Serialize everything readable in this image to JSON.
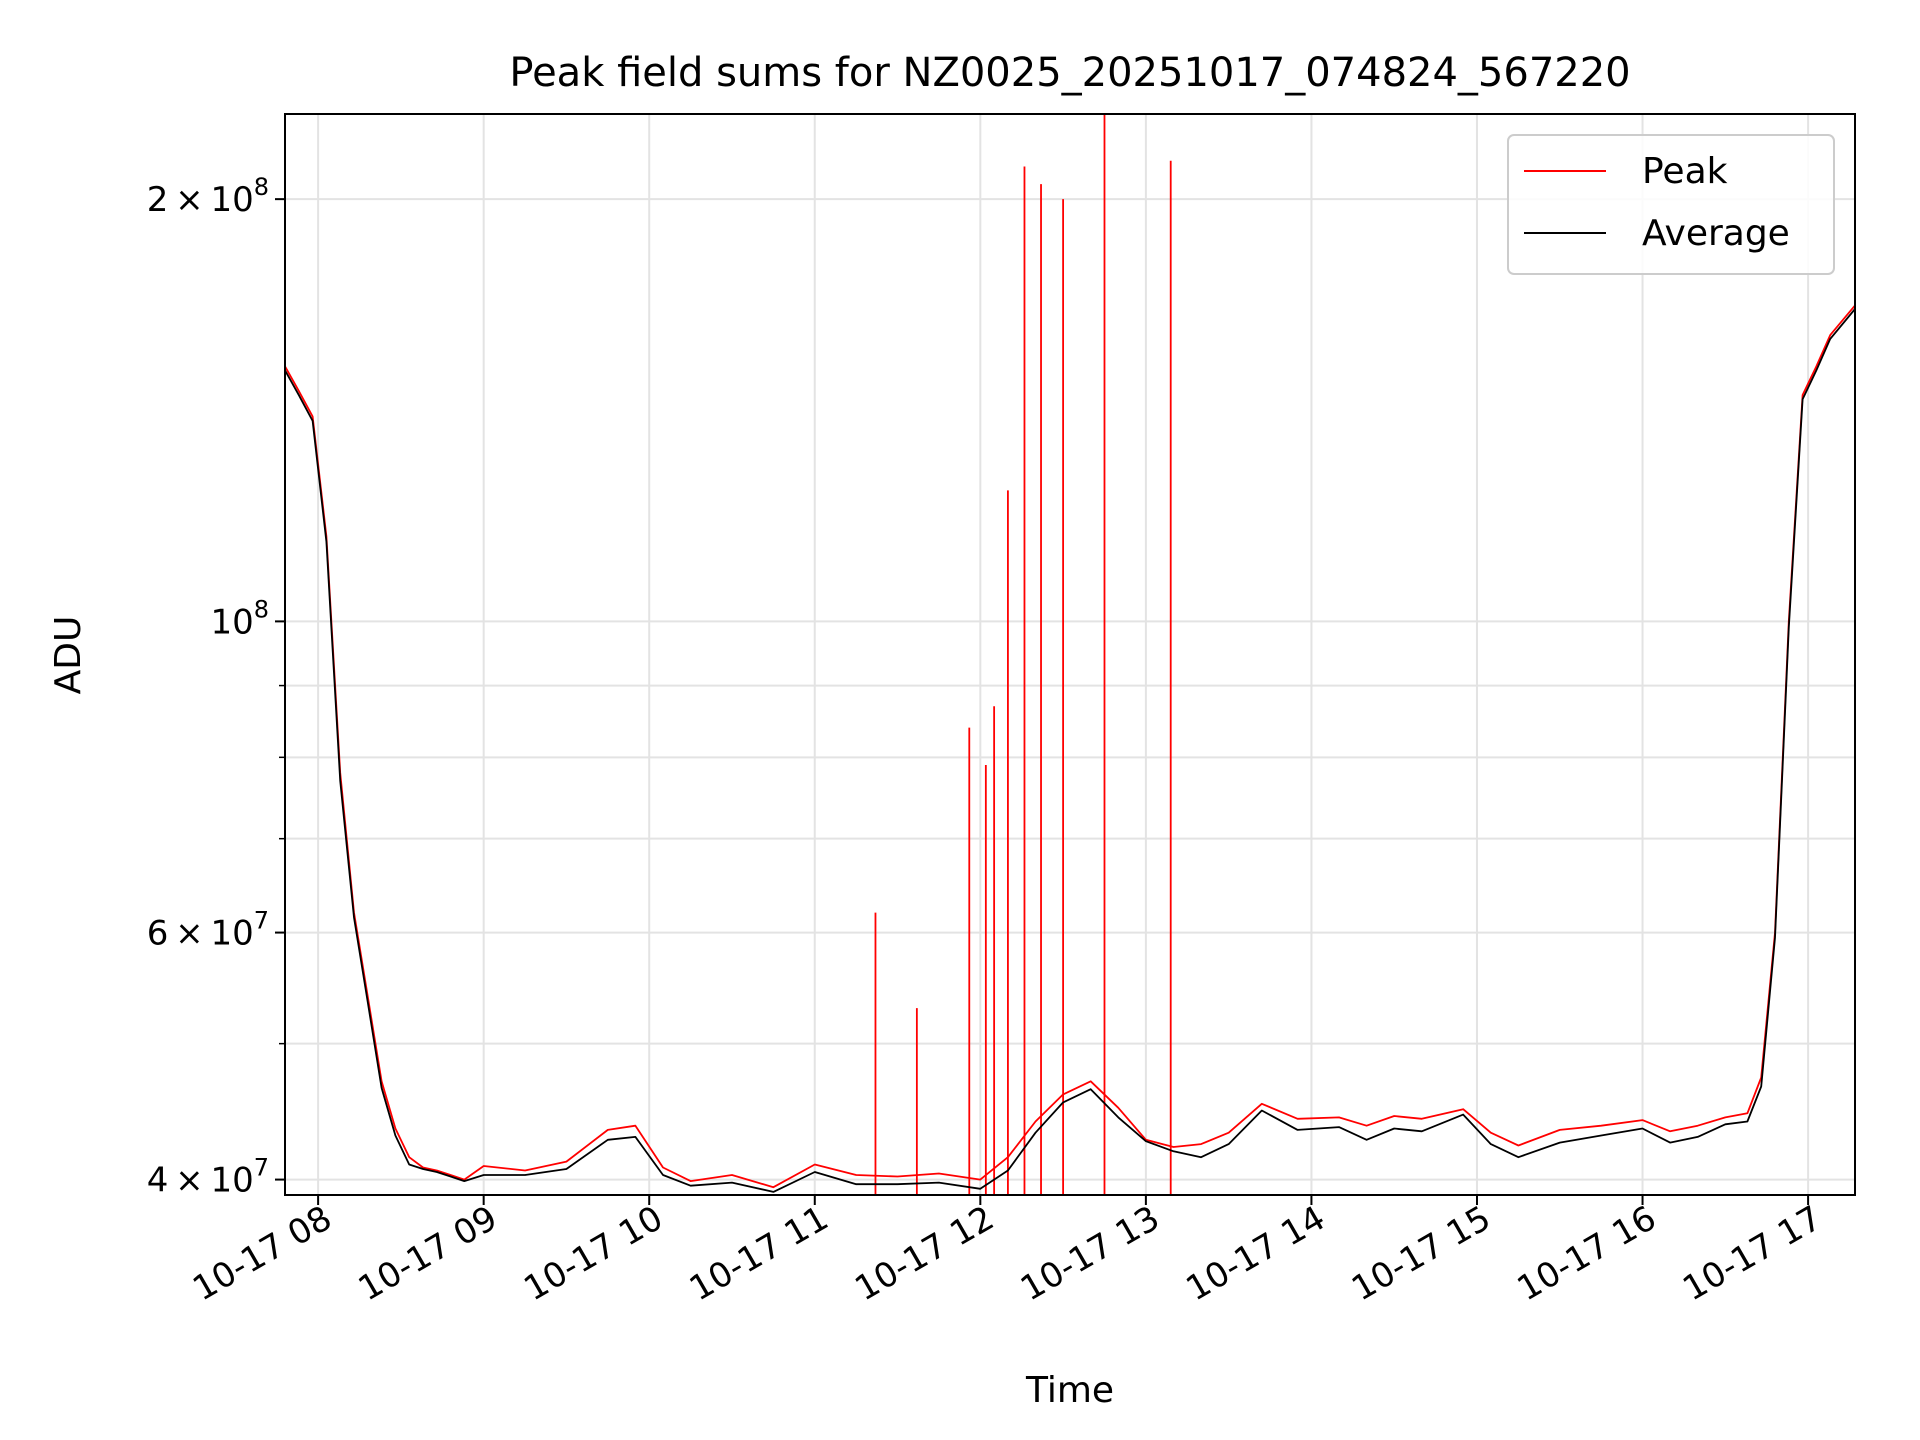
{
  "chart_data": {
    "type": "line",
    "title": "Peak field sums for NZ0025_20251017_074824_567220",
    "xlabel": "Time",
    "ylabel": "ADU",
    "y_scale": "log",
    "ylim": [
      39000000,
      230000000
    ],
    "xlim": [
      "2025-10-17 07:48",
      "2025-10-17 17:17"
    ],
    "grid": true,
    "legend_position": "top-right",
    "x_ticks": [
      {
        "t": "2025-10-17 08:00",
        "label": "10-17 08"
      },
      {
        "t": "2025-10-17 09:00",
        "label": "10-17 09"
      },
      {
        "t": "2025-10-17 10:00",
        "label": "10-17 10"
      },
      {
        "t": "2025-10-17 11:00",
        "label": "10-17 11"
      },
      {
        "t": "2025-10-17 12:00",
        "label": "10-17 12"
      },
      {
        "t": "2025-10-17 13:00",
        "label": "10-17 13"
      },
      {
        "t": "2025-10-17 14:00",
        "label": "10-17 14"
      },
      {
        "t": "2025-10-17 15:00",
        "label": "10-17 15"
      },
      {
        "t": "2025-10-17 16:00",
        "label": "10-17 16"
      },
      {
        "t": "2025-10-17 17:00",
        "label": "10-17 17"
      }
    ],
    "y_ticks": [
      {
        "value": 40000000,
        "mantissa": "4 × 10",
        "exp": "7"
      },
      {
        "value": 60000000,
        "mantissa": "6 × 10",
        "exp": "7"
      },
      {
        "value": 100000000,
        "mantissa": "10",
        "exp": "8"
      },
      {
        "value": 200000000,
        "mantissa": "2 × 10",
        "exp": "8"
      }
    ],
    "y_minor_ticks": [
      50000000,
      70000000,
      80000000,
      90000000
    ],
    "series": [
      {
        "name": "Peak",
        "color": "#ff0000",
        "x": [
          "2025-10-17 07:48",
          "2025-10-17 07:53",
          "2025-10-17 07:58",
          "2025-10-17 08:03",
          "2025-10-17 08:08",
          "2025-10-17 08:13",
          "2025-10-17 08:18",
          "2025-10-17 08:23",
          "2025-10-17 08:28",
          "2025-10-17 08:33",
          "2025-10-17 08:38",
          "2025-10-17 08:43",
          "2025-10-17 08:48",
          "2025-10-17 08:53",
          "2025-10-17 09:00",
          "2025-10-17 09:15",
          "2025-10-17 09:30",
          "2025-10-17 09:45",
          "2025-10-17 09:55",
          "2025-10-17 10:05",
          "2025-10-17 10:15",
          "2025-10-17 10:30",
          "2025-10-17 10:45",
          "2025-10-17 11:00",
          "2025-10-17 11:15",
          "2025-10-17 11:30",
          "2025-10-17 11:45",
          "2025-10-17 12:00",
          "2025-10-17 12:10",
          "2025-10-17 12:20",
          "2025-10-17 12:30",
          "2025-10-17 12:40",
          "2025-10-17 12:50",
          "2025-10-17 13:00",
          "2025-10-17 13:10",
          "2025-10-17 13:20",
          "2025-10-17 13:30",
          "2025-10-17 13:42",
          "2025-10-17 13:55",
          "2025-10-17 14:10",
          "2025-10-17 14:20",
          "2025-10-17 14:30",
          "2025-10-17 14:40",
          "2025-10-17 14:55",
          "2025-10-17 15:05",
          "2025-10-17 15:15",
          "2025-10-17 15:30",
          "2025-10-17 15:45",
          "2025-10-17 16:00",
          "2025-10-17 16:10",
          "2025-10-17 16:20",
          "2025-10-17 16:30",
          "2025-10-17 16:38",
          "2025-10-17 16:43",
          "2025-10-17 16:48",
          "2025-10-17 16:53",
          "2025-10-17 16:58",
          "2025-10-17 17:03",
          "2025-10-17 17:08",
          "2025-10-17 17:17"
        ],
        "y": [
          152000000,
          146000000,
          140000000,
          115000000,
          78000000,
          62000000,
          54000000,
          47000000,
          43500000,
          41500000,
          40800000,
          40600000,
          40300000,
          40000000,
          40900000,
          40600000,
          41200000,
          43400000,
          43700000,
          40800000,
          39900000,
          40300000,
          39500000,
          41000000,
          40300000,
          40200000,
          40400000,
          40000000,
          41500000,
          44000000,
          46000000,
          47000000,
          45000000,
          42700000,
          42200000,
          42400000,
          43200000,
          45300000,
          44200000,
          44300000,
          43700000,
          44400000,
          44200000,
          44900000,
          43200000,
          42300000,
          43400000,
          43700000,
          44100000,
          43300000,
          43700000,
          44300000,
          44600000,
          47300000,
          60000000,
          100000000,
          145000000,
          152000000,
          160000000,
          168000000
        ],
        "spikes": [
          {
            "x": "2025-10-17 11:22",
            "y": 62000000
          },
          {
            "x": "2025-10-17 11:37",
            "y": 53000000
          },
          {
            "x": "2025-10-17 11:56",
            "y": 84000000
          },
          {
            "x": "2025-10-17 12:02",
            "y": 79000000
          },
          {
            "x": "2025-10-17 12:05",
            "y": 87000000
          },
          {
            "x": "2025-10-17 12:10",
            "y": 124000000
          },
          {
            "x": "2025-10-17 12:16",
            "y": 211000000
          },
          {
            "x": "2025-10-17 12:22",
            "y": 205000000
          },
          {
            "x": "2025-10-17 12:30",
            "y": 200000000
          },
          {
            "x": "2025-10-17 12:45",
            "y": 230000000
          },
          {
            "x": "2025-10-17 13:09",
            "y": 213000000
          }
        ]
      },
      {
        "name": "Average",
        "color": "#000000",
        "x": [
          "2025-10-17 07:48",
          "2025-10-17 07:53",
          "2025-10-17 07:58",
          "2025-10-17 08:03",
          "2025-10-17 08:08",
          "2025-10-17 08:13",
          "2025-10-17 08:18",
          "2025-10-17 08:23",
          "2025-10-17 08:28",
          "2025-10-17 08:33",
          "2025-10-17 08:38",
          "2025-10-17 08:43",
          "2025-10-17 08:48",
          "2025-10-17 08:53",
          "2025-10-17 09:00",
          "2025-10-17 09:15",
          "2025-10-17 09:30",
          "2025-10-17 09:45",
          "2025-10-17 09:55",
          "2025-10-17 10:05",
          "2025-10-17 10:15",
          "2025-10-17 10:30",
          "2025-10-17 10:45",
          "2025-10-17 11:00",
          "2025-10-17 11:15",
          "2025-10-17 11:30",
          "2025-10-17 11:45",
          "2025-10-17 12:00",
          "2025-10-17 12:10",
          "2025-10-17 12:20",
          "2025-10-17 12:30",
          "2025-10-17 12:40",
          "2025-10-17 12:50",
          "2025-10-17 13:00",
          "2025-10-17 13:10",
          "2025-10-17 13:20",
          "2025-10-17 13:30",
          "2025-10-17 13:42",
          "2025-10-17 13:55",
          "2025-10-17 14:10",
          "2025-10-17 14:20",
          "2025-10-17 14:30",
          "2025-10-17 14:40",
          "2025-10-17 14:55",
          "2025-10-17 15:05",
          "2025-10-17 15:15",
          "2025-10-17 15:30",
          "2025-10-17 15:45",
          "2025-10-17 16:00",
          "2025-10-17 16:10",
          "2025-10-17 16:20",
          "2025-10-17 16:30",
          "2025-10-17 16:38",
          "2025-10-17 16:43",
          "2025-10-17 16:48",
          "2025-10-17 16:53",
          "2025-10-17 16:58",
          "2025-10-17 17:03",
          "2025-10-17 17:08",
          "2025-10-17 17:17"
        ],
        "y": [
          151000000,
          145000000,
          139000000,
          114000000,
          77000000,
          61500000,
          53500000,
          46500000,
          43000000,
          41000000,
          40700000,
          40500000,
          40200000,
          39900000,
          40300000,
          40300000,
          40700000,
          42700000,
          42900000,
          40300000,
          39600000,
          39800000,
          39200000,
          40500000,
          39700000,
          39700000,
          39800000,
          39400000,
          40600000,
          43200000,
          45400000,
          46400000,
          44300000,
          42600000,
          41900000,
          41500000,
          42400000,
          44800000,
          43400000,
          43600000,
          42700000,
          43500000,
          43300000,
          44500000,
          42400000,
          41500000,
          42500000,
          43000000,
          43500000,
          42500000,
          42900000,
          43800000,
          44000000,
          46600000,
          59500000,
          99000000,
          144000000,
          151000000,
          159000000,
          167000000
        ]
      }
    ]
  }
}
